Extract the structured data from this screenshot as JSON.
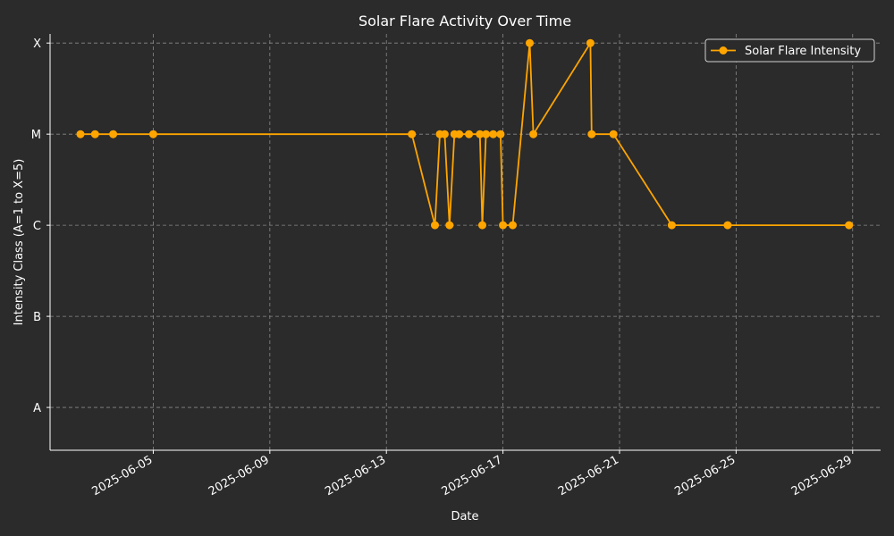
{
  "chart_data": {
    "type": "line",
    "title": "Solar Flare Activity Over Time",
    "xlabel": "Date",
    "ylabel": "Intensity Class (A=1 to X=5)",
    "ylim": [
      1,
      5
    ],
    "y_tick_values": [
      1,
      2,
      3,
      4,
      5
    ],
    "y_tick_labels": [
      "A",
      "B",
      "C",
      "M",
      "X"
    ],
    "x_tick_labels": [
      "2025-06-05",
      "2025-06-09",
      "2025-06-13",
      "2025-06-17",
      "2025-06-21",
      "2025-06-25",
      "2025-06-29"
    ],
    "x_range": [
      "2025-06-01T11:00",
      "2025-06-29T23:00"
    ],
    "grid": true,
    "legend_position": "top-right",
    "colors": {
      "background": "#2b2b2b",
      "series": "#ffa500"
    },
    "series": [
      {
        "name": "Solar Flare Intensity",
        "points": [
          {
            "x": "2025-06-02T12:00",
            "y": 4
          },
          {
            "x": "2025-06-03T00:00",
            "y": 4
          },
          {
            "x": "2025-06-03T15:00",
            "y": 4
          },
          {
            "x": "2025-06-05T00:00",
            "y": 4
          },
          {
            "x": "2025-06-13T21:00",
            "y": 4
          },
          {
            "x": "2025-06-14T16:00",
            "y": 3
          },
          {
            "x": "2025-06-14T20:00",
            "y": 4
          },
          {
            "x": "2025-06-15T00:00",
            "y": 4
          },
          {
            "x": "2025-06-15T04:00",
            "y": 3
          },
          {
            "x": "2025-06-15T08:00",
            "y": 4
          },
          {
            "x": "2025-06-15T12:00",
            "y": 4
          },
          {
            "x": "2025-06-15T20:00",
            "y": 4
          },
          {
            "x": "2025-06-16T05:00",
            "y": 4
          },
          {
            "x": "2025-06-16T07:00",
            "y": 3
          },
          {
            "x": "2025-06-16T10:00",
            "y": 4
          },
          {
            "x": "2025-06-16T16:00",
            "y": 4
          },
          {
            "x": "2025-06-16T22:00",
            "y": 4
          },
          {
            "x": "2025-06-17T00:00",
            "y": 3
          },
          {
            "x": "2025-06-17T08:00",
            "y": 3
          },
          {
            "x": "2025-06-17T22:00",
            "y": 5
          },
          {
            "x": "2025-06-18T01:00",
            "y": 4
          },
          {
            "x": "2025-06-20T00:00",
            "y": 5
          },
          {
            "x": "2025-06-20T01:00",
            "y": 4
          },
          {
            "x": "2025-06-20T19:00",
            "y": 4
          },
          {
            "x": "2025-06-22T19:00",
            "y": 3
          },
          {
            "x": "2025-06-24T17:00",
            "y": 3
          },
          {
            "x": "2025-06-28T21:00",
            "y": 3
          }
        ]
      }
    ]
  }
}
